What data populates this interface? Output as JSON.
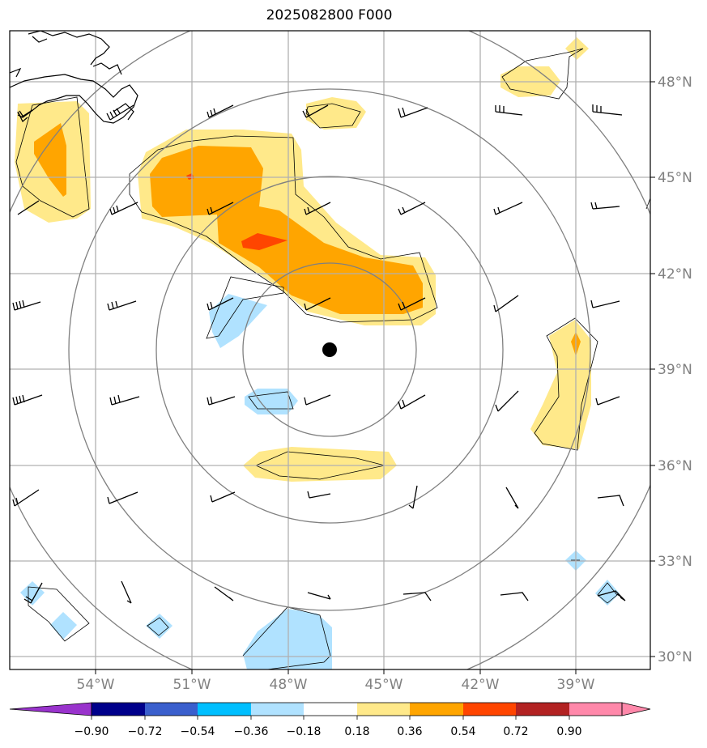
{
  "title": "2025082800 F000",
  "colors": {
    "pos_018_036": "#ffe98a",
    "pos_036_054": "#ffa500",
    "pos_054_072": "#ff4500",
    "neg_018_036": "#b0e2ff",
    "grid": "#b0b0b0",
    "ring": "#808080",
    "coast": "#000000",
    "center_marker": "#000000"
  },
  "lat_labels": [
    "48°N",
    "45°N",
    "42°N",
    "39°N",
    "36°N",
    "33°N",
    "30°N"
  ],
  "lon_labels": [
    "54°W",
    "51°W",
    "48°W",
    "45°W",
    "42°W",
    "39°W"
  ],
  "colorbar": {
    "colors": [
      "#9933cc",
      "#00008b",
      "#3a5fcd",
      "#00bfff",
      "#b0e2ff",
      "#ffffff",
      "#ffe98a",
      "#ffa500",
      "#ff4500",
      "#b22222",
      "#ff88aa"
    ],
    "labels": [
      "−0.90",
      "−0.72",
      "−0.54",
      "−0.36",
      "−0.18",
      "0.18",
      "0.36",
      "0.54",
      "0.72",
      "0.90"
    ]
  },
  "map_features": {
    "center_marker": "storm-center-dot",
    "range_rings": 3,
    "wind_barbs": "black"
  }
}
